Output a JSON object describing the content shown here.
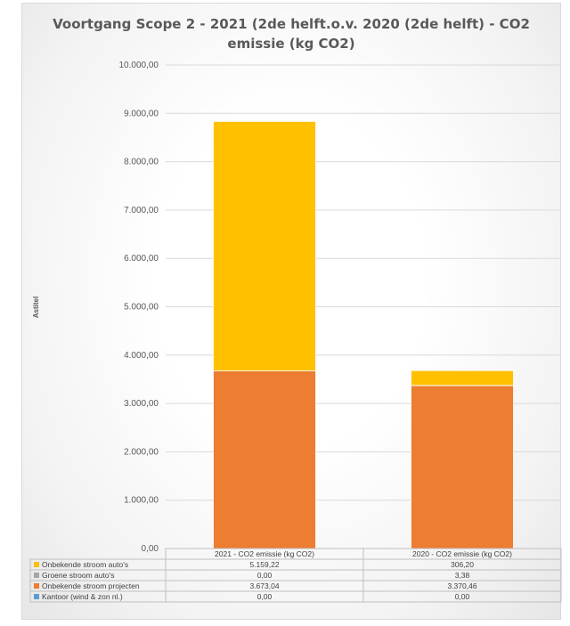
{
  "chart_data": {
    "type": "bar",
    "stacked": true,
    "title_line1": "Voortgang Scope 2 - 2021 (2de helft.o.v. 2020 (2de helft) - CO2",
    "title_line2": "emissie (kg CO2)",
    "ylabel": "Astitel",
    "ylim": [
      0,
      10000
    ],
    "yticks": [
      0,
      1000,
      2000,
      3000,
      4000,
      5000,
      6000,
      7000,
      8000,
      9000,
      10000
    ],
    "ytick_labels": [
      "0,00",
      "1.000,00",
      "2.000,00",
      "3.000,00",
      "4.000,00",
      "5.000,00",
      "6.000,00",
      "7.000,00",
      "8.000,00",
      "9.000,00",
      "10.000,00"
    ],
    "grid": true,
    "legend": "data-table",
    "categories": [
      "2021 - CO2 emissie (kg CO2)",
      "2020 - CO2 emissie (kg CO2)"
    ],
    "series": [
      {
        "name": "Onbekende stroom auto's",
        "color": "#ffc000",
        "values": [
          5159.22,
          306.2
        ],
        "labels": [
          "5.159,22",
          "306,20"
        ]
      },
      {
        "name": "Groene stroom auto's",
        "color": "#a5a5a5",
        "values": [
          0.0,
          3.38
        ],
        "labels": [
          "0,00",
          "3,38"
        ]
      },
      {
        "name": "Onbekende stroom projecten",
        "color": "#ed7d31",
        "values": [
          3673.04,
          3370.46
        ],
        "labels": [
          "3.673,04",
          "3.370,46"
        ]
      },
      {
        "name": "Kantoor (wind & zon nl.)",
        "color": "#5b9bd5",
        "values": [
          0.0,
          0.0
        ],
        "labels": [
          "0,00",
          "0,00"
        ]
      }
    ]
  }
}
